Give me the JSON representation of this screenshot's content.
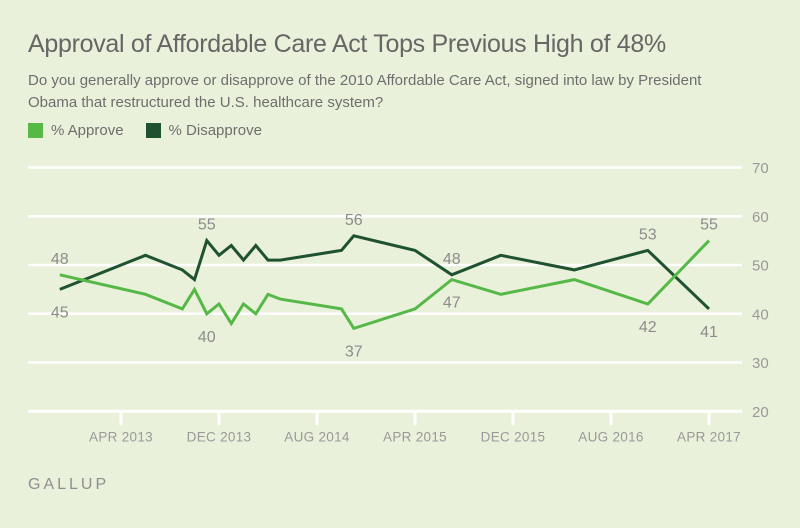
{
  "page": {
    "background_color": "#e9f1db",
    "source_label": "GALLUP"
  },
  "header": {
    "title": "Approval of Affordable Care Act Tops Previous High of 48%",
    "subtitle": "Do you generally approve or disapprove of the 2010 Affordable Care Act, signed into law by President Obama that restructured the U.S. healthcare system?"
  },
  "legend": {
    "items": [
      {
        "label": "% Approve",
        "color": "#56b947"
      },
      {
        "label": "% Disapprove",
        "color": "#1f5230"
      }
    ]
  },
  "chart_data": {
    "type": "line",
    "grid": true,
    "gridline_color": "#ffffff",
    "text_color": "#999999",
    "data_label_color": "#8c8c8c",
    "x_axis": {
      "tick_labels": [
        "APR 2013",
        "DEC 2013",
        "AUG 2014",
        "APR 2015",
        "DEC 2015",
        "AUG 2016",
        "APR 2017"
      ],
      "tick_interval_months": 8
    },
    "y_axis": {
      "side": "right",
      "ylim": [
        20,
        70
      ],
      "ticks": [
        20,
        30,
        40,
        50,
        60,
        70
      ]
    },
    "categories": [
      "Nov 2012",
      "Jun 2013",
      "Sep 2013",
      "Oct 2013",
      "Nov 2013",
      "Dec 2013",
      "Jan 2014",
      "Feb 2014",
      "Mar 2014",
      "Apr 2014",
      "May 2014",
      "Oct 2014",
      "Nov 2014",
      "Apr 2015",
      "Jul 2015",
      "Nov 2015",
      "May 2016",
      "Nov 2016",
      "Apr 2017"
    ],
    "series": [
      {
        "name": "% Approve",
        "color": "#56b947",
        "values": [
          48,
          44,
          41,
          45,
          40,
          42,
          38,
          42,
          40,
          44,
          43,
          41,
          37,
          41,
          47,
          44,
          47,
          42,
          55
        ]
      },
      {
        "name": "% Disapprove",
        "color": "#1f5230",
        "values": [
          45,
          52,
          49,
          47,
          55,
          52,
          54,
          51,
          54,
          51,
          51,
          53,
          56,
          53,
          48,
          52,
          49,
          53,
          41
        ]
      }
    ],
    "labeled_points": [
      "Nov 2012",
      "Nov 2013",
      "Nov 2014",
      "Jul 2015",
      "Nov 2016",
      "Apr 2017"
    ],
    "labeled_values": {
      "Nov 2012": {
        "approve": 48,
        "disapprove": 45
      },
      "Nov 2013": {
        "approve": 40,
        "disapprove": 55
      },
      "Nov 2014": {
        "approve": 37,
        "disapprove": 56
      },
      "Jul 2015": {
        "approve": 47,
        "disapprove": 48
      },
      "Nov 2016": {
        "approve": 42,
        "disapprove": 53
      },
      "Apr 2017": {
        "approve": 55,
        "disapprove": 41
      }
    }
  }
}
